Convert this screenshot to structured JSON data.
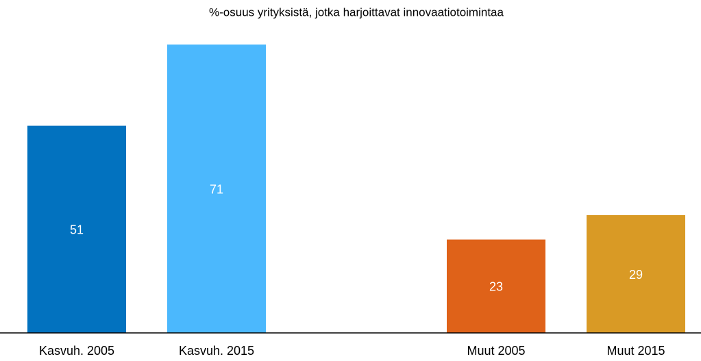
{
  "chart_data": {
    "type": "bar",
    "title": "%-osuus yrityksistä, jotka harjoittavat innovaatiotoimintaa",
    "categories": [
      "Kasvuh. 2005",
      "Kasvuh. 2015",
      null,
      "Muut 2005",
      "Muut 2015"
    ],
    "values": [
      51,
      71,
      null,
      23,
      29
    ],
    "colors": [
      "#0272bf",
      "#4bb8fd",
      null,
      "#df6219",
      "#d99a25"
    ],
    "data_labels": true
  }
}
